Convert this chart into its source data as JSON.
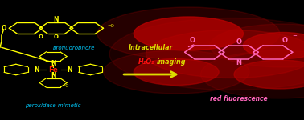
{
  "bg_color": "#000000",
  "fig_width": 3.78,
  "fig_height": 1.5,
  "dpi": 100,
  "left_molecule_color": "#ffff00",
  "fe_color": "#ff2200",
  "label_profluorophore_color": "#00ccff",
  "label_peroxidase_color": "#00ccff",
  "arrow_color": "#dddd00",
  "intracellular_color": "#dddd00",
  "h2o2_color": "#ff1111",
  "right_molecule_color": "#ff66bb",
  "red_fluor_color": "#ff66bb",
  "glow_color": "#bb0000",
  "glow_positions": [
    [
      0.62,
      0.72,
      0.18,
      0.14,
      0.75
    ],
    [
      0.93,
      0.62,
      0.13,
      0.11,
      0.65
    ],
    [
      0.58,
      0.4,
      0.14,
      0.11,
      0.55
    ],
    [
      0.92,
      0.38,
      0.15,
      0.12,
      0.55
    ],
    [
      0.76,
      0.55,
      0.28,
      0.2,
      0.3
    ]
  ],
  "glow_soft": [
    [
      0.62,
      0.72,
      0.3,
      0.22,
      0.2
    ],
    [
      0.93,
      0.62,
      0.24,
      0.18,
      0.18
    ],
    [
      0.58,
      0.4,
      0.24,
      0.18,
      0.18
    ],
    [
      0.92,
      0.38,
      0.26,
      0.2,
      0.15
    ],
    [
      0.76,
      0.55,
      0.4,
      0.3,
      0.15
    ]
  ],
  "text_intracellular": "Intracellular",
  "text_h2o2": "H₂O₂ imaging",
  "text_profluorophore": "profluorophore",
  "text_peroxidase": "peroxidase mimetic",
  "text_red_fluor": "red fluorescence"
}
